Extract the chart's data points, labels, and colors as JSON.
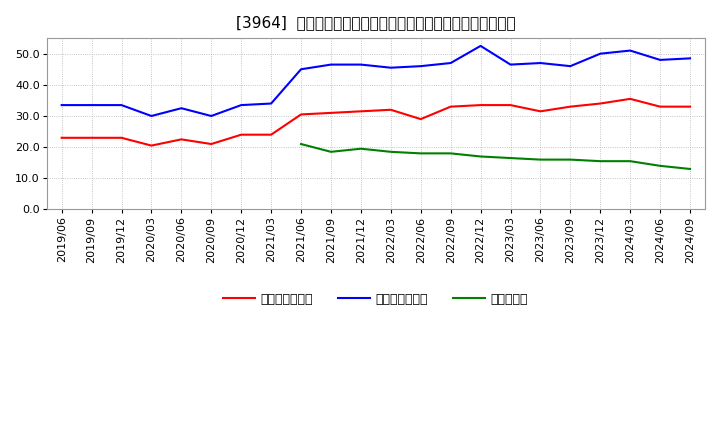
{
  "title": "[3964]  売上債権回転率、買入債務回転率、在庫回転率の推移",
  "x_labels": [
    "2019/06",
    "2019/09",
    "2019/12",
    "2020/03",
    "2020/06",
    "2020/09",
    "2020/12",
    "2021/03",
    "2021/06",
    "2021/09",
    "2021/12",
    "2022/03",
    "2022/06",
    "2022/09",
    "2022/12",
    "2023/03",
    "2023/06",
    "2023/09",
    "2023/12",
    "2024/03",
    "2024/06",
    "2024/09"
  ],
  "receivables_turnover": [
    23.0,
    23.0,
    23.0,
    20.5,
    22.5,
    21.0,
    24.0,
    24.0,
    30.5,
    31.0,
    31.5,
    32.0,
    29.0,
    33.0,
    33.5,
    33.5,
    31.5,
    33.0,
    34.0,
    35.5,
    33.0,
    33.0
  ],
  "payables_turnover": [
    33.5,
    33.5,
    33.5,
    30.0,
    32.5,
    30.0,
    33.5,
    34.0,
    45.0,
    46.5,
    46.5,
    45.5,
    46.0,
    47.0,
    52.5,
    46.5,
    47.0,
    46.0,
    50.0,
    51.0,
    48.0,
    48.5
  ],
  "inventory_turnover": [
    null,
    null,
    null,
    null,
    null,
    null,
    null,
    null,
    21.0,
    18.5,
    19.5,
    18.5,
    18.0,
    18.0,
    17.0,
    16.5,
    16.0,
    16.0,
    15.5,
    15.5,
    14.0,
    13.0
  ],
  "receivables_color": "#ff0000",
  "payables_color": "#0000ff",
  "inventory_color": "#008000",
  "legend_labels": [
    "売上債権回転率",
    "買入債務回転率",
    "在庫回転率"
  ],
  "ylim": [
    0,
    55
  ],
  "yticks": [
    0.0,
    10.0,
    20.0,
    30.0,
    40.0,
    50.0
  ],
  "background_color": "#ffffff",
  "grid_color": "#aaaaaa",
  "title_fontsize": 11,
  "axis_fontsize": 8,
  "legend_fontsize": 9
}
